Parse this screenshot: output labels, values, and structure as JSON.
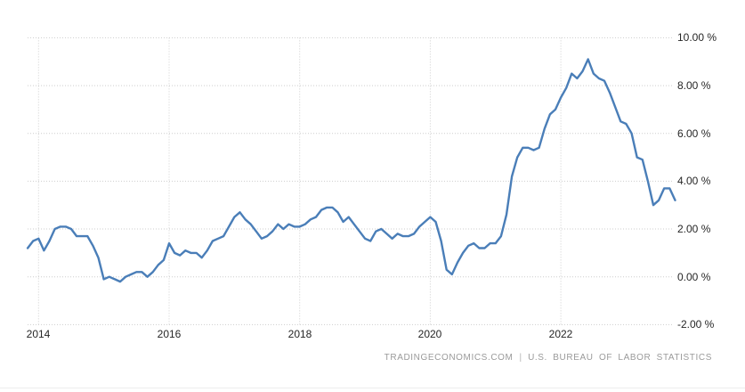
{
  "chart_data": {
    "type": "line",
    "x_unit": "month",
    "x_start": "2013-11",
    "x_end": "2023-10",
    "values": [
      1.2,
      1.5,
      1.6,
      1.1,
      1.5,
      2.0,
      2.1,
      2.1,
      2.0,
      1.7,
      1.7,
      1.7,
      1.3,
      0.8,
      -0.1,
      0.0,
      -0.1,
      -0.2,
      0.0,
      0.1,
      0.2,
      0.2,
      0.0,
      0.2,
      0.5,
      0.7,
      1.4,
      1.0,
      0.9,
      1.1,
      1.0,
      1.0,
      0.8,
      1.1,
      1.5,
      1.6,
      1.7,
      2.1,
      2.5,
      2.7,
      2.4,
      2.2,
      1.9,
      1.6,
      1.7,
      1.9,
      2.2,
      2.0,
      2.2,
      2.1,
      2.1,
      2.2,
      2.4,
      2.5,
      2.8,
      2.9,
      2.9,
      2.7,
      2.3,
      2.5,
      2.2,
      1.9,
      1.6,
      1.5,
      1.9,
      2.0,
      1.8,
      1.6,
      1.8,
      1.7,
      1.7,
      1.8,
      2.1,
      2.3,
      2.5,
      2.3,
      1.5,
      0.3,
      0.1,
      0.6,
      1.0,
      1.3,
      1.4,
      1.2,
      1.2,
      1.4,
      1.4,
      1.7,
      2.6,
      4.2,
      5.0,
      5.4,
      5.4,
      5.3,
      5.4,
      6.2,
      6.8,
      7.0,
      7.5,
      7.9,
      8.5,
      8.3,
      8.6,
      9.1,
      8.5,
      8.3,
      8.2,
      7.7,
      7.1,
      6.5,
      6.4,
      6.0,
      5.0,
      4.9,
      4.0,
      3.0,
      3.2,
      3.7,
      3.7,
      3.2
    ],
    "y_axis": {
      "position": "right",
      "ticks": [
        {
          "value": 10,
          "label": "10.00 %"
        },
        {
          "value": 8,
          "label": "8.00 %"
        },
        {
          "value": 6,
          "label": "6.00 %"
        },
        {
          "value": 4,
          "label": "4.00 %"
        },
        {
          "value": 2,
          "label": "2.00 %"
        },
        {
          "value": 0,
          "label": "0.00 %"
        },
        {
          "value": -2,
          "label": "-2.00 %"
        }
      ]
    },
    "x_axis": {
      "ticks": [
        {
          "year": 2014,
          "label": "2014"
        },
        {
          "year": 2016,
          "label": "2016"
        },
        {
          "year": 2018,
          "label": "2018"
        },
        {
          "year": 2020,
          "label": "2020"
        },
        {
          "year": 2022,
          "label": "2022"
        }
      ]
    },
    "grid": "dotted",
    "legend": "none",
    "colors": {
      "line": "#4a7eb8",
      "gridline": "#cdcdcd",
      "axis_text": "#262626",
      "watermark_text": "#9a9a9a"
    }
  },
  "footer": {
    "source_left": "TRADINGECONOMICS.COM",
    "separator": "|",
    "source_right": "U.S.  BUREAU  OF  LABOR  STATISTICS"
  }
}
